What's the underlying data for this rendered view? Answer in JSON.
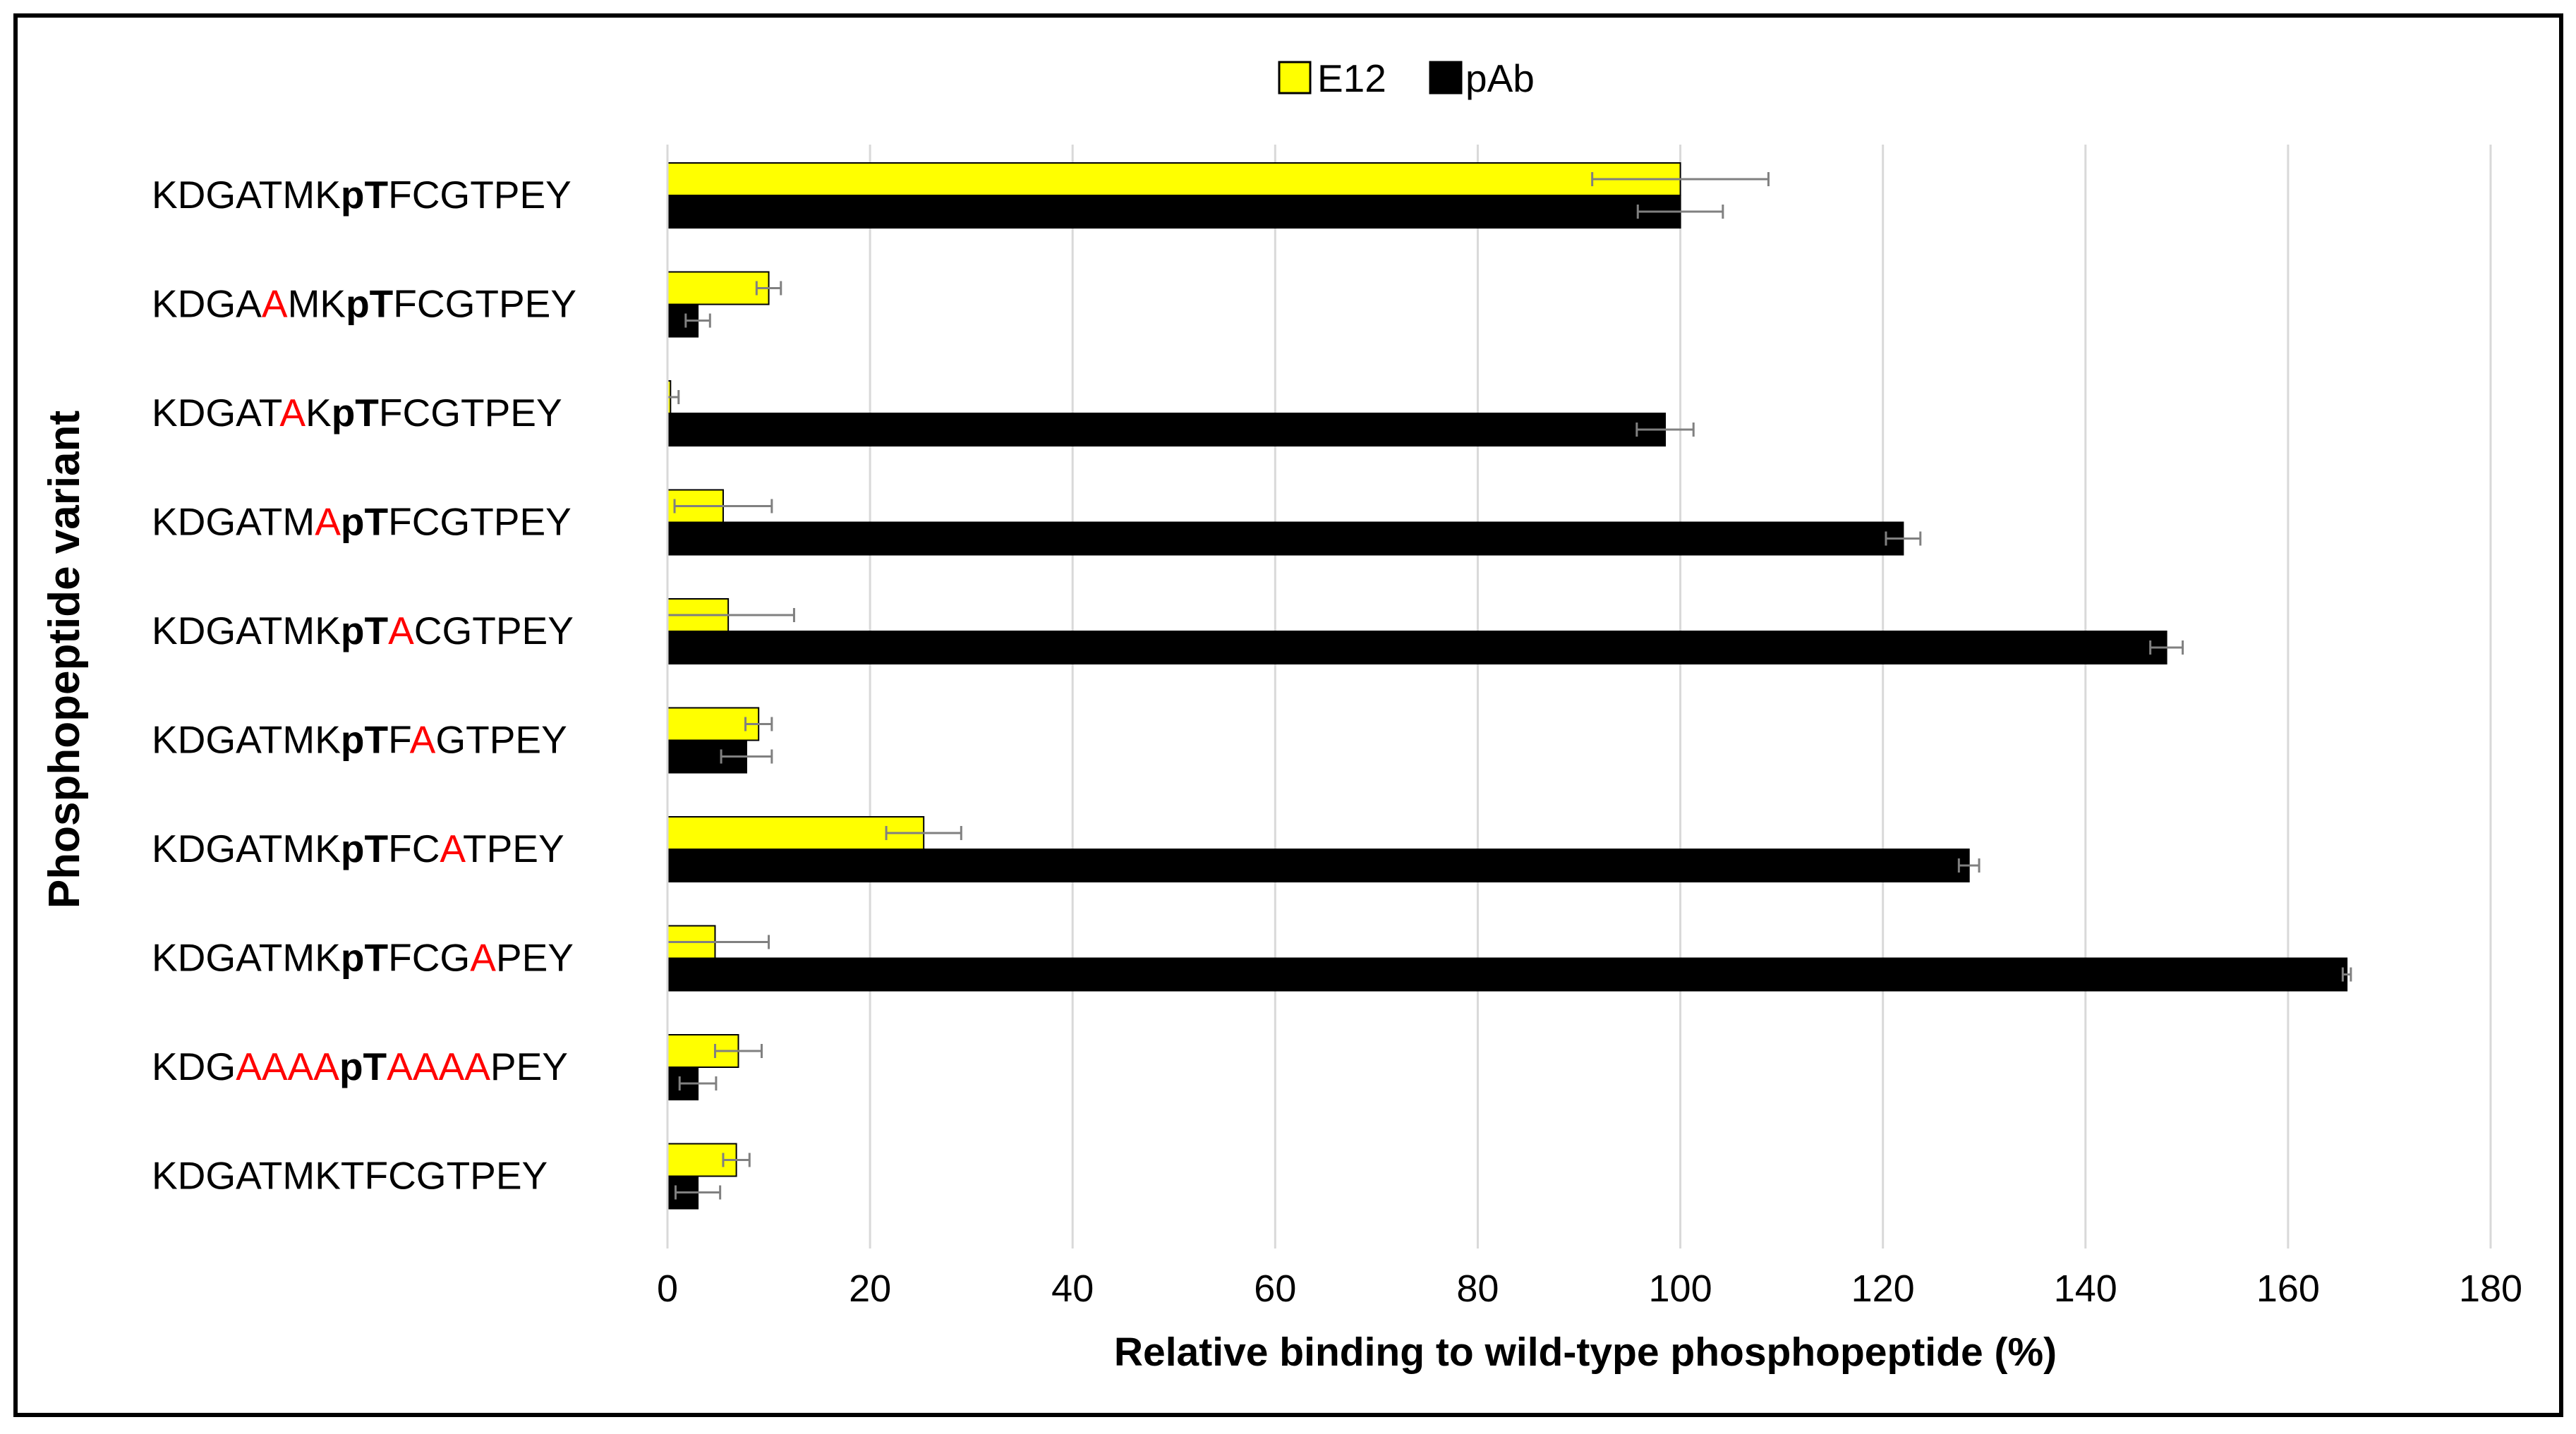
{
  "chart_data": {
    "type": "bar",
    "orientation": "horizontal",
    "xlabel": "Relative binding to wild-type phosphopeptide (%)",
    "ylabel": "Phosphopeptide variant",
    "xlim": [
      0,
      180
    ],
    "xticks": [
      0,
      20,
      40,
      60,
      80,
      100,
      120,
      140,
      160,
      180
    ],
    "grid": "vertical",
    "legend": "top-center",
    "categories": [
      "KDGATMKpTFCGTPEY",
      "KDGAAMKpTFCGTPEY",
      "KDGATAKpTFCGTPEY",
      "KDGATMApTFCGTPEY",
      "KDGATMKpTACGTPEY",
      "KDGATMKpTFAGTPEY",
      "KDGATMKpTFCATPEY",
      "KDGATMKpTFCGAPEY",
      "KDGAAAApTAAAAPEY",
      "KDGATMKTFCGTPEY"
    ],
    "category_segments": [
      [
        {
          "t": "KDGATMK",
          "s": "n"
        },
        {
          "t": "pT",
          "s": "b"
        },
        {
          "t": "FCGTPEY",
          "s": "n"
        }
      ],
      [
        {
          "t": "KDGA",
          "s": "n"
        },
        {
          "t": "A",
          "s": "r"
        },
        {
          "t": "MK",
          "s": "n"
        },
        {
          "t": "pT",
          "s": "b"
        },
        {
          "t": "FCGTPEY",
          "s": "n"
        }
      ],
      [
        {
          "t": "KDGAT",
          "s": "n"
        },
        {
          "t": "A",
          "s": "r"
        },
        {
          "t": "K",
          "s": "n"
        },
        {
          "t": "pT",
          "s": "b"
        },
        {
          "t": "FCGTPEY",
          "s": "n"
        }
      ],
      [
        {
          "t": "KDGATM",
          "s": "n"
        },
        {
          "t": "A",
          "s": "r"
        },
        {
          "t": "pT",
          "s": "b"
        },
        {
          "t": "FCGTPEY",
          "s": "n"
        }
      ],
      [
        {
          "t": "KDGATMK",
          "s": "n"
        },
        {
          "t": "pT",
          "s": "b"
        },
        {
          "t": "A",
          "s": "r"
        },
        {
          "t": "CGTPEY",
          "s": "n"
        }
      ],
      [
        {
          "t": "KDGATMK",
          "s": "n"
        },
        {
          "t": "pT",
          "s": "b"
        },
        {
          "t": "F",
          "s": "n"
        },
        {
          "t": "A",
          "s": "r"
        },
        {
          "t": "GTPEY",
          "s": "n"
        }
      ],
      [
        {
          "t": "KDGATMK",
          "s": "n"
        },
        {
          "t": "pT",
          "s": "b"
        },
        {
          "t": "FC",
          "s": "n"
        },
        {
          "t": "A",
          "s": "r"
        },
        {
          "t": "TPEY",
          "s": "n"
        }
      ],
      [
        {
          "t": "KDGATMK",
          "s": "n"
        },
        {
          "t": "pT",
          "s": "b"
        },
        {
          "t": "FCG",
          "s": "n"
        },
        {
          "t": "A",
          "s": "r"
        },
        {
          "t": "PEY",
          "s": "n"
        }
      ],
      [
        {
          "t": "KDG",
          "s": "n"
        },
        {
          "t": "AAAA",
          "s": "r"
        },
        {
          "t": "pT",
          "s": "b"
        },
        {
          "t": "AAAA",
          "s": "r"
        },
        {
          "t": "PEY",
          "s": "n"
        }
      ],
      [
        {
          "t": "KDGATMKTFCGTPEY",
          "s": "n"
        }
      ]
    ],
    "series": [
      {
        "name": "E12",
        "color": "#ffff00",
        "values": [
          100,
          10,
          0.3,
          5.5,
          6,
          9,
          25.3,
          4.7,
          7,
          6.8
        ],
        "errors": [
          8.7,
          1.2,
          0.8,
          4.8,
          6.5,
          1.3,
          3.7,
          5.3,
          2.3,
          1.3
        ]
      },
      {
        "name": "pAb",
        "color": "#000000",
        "values": [
          100,
          3,
          98.5,
          122,
          148,
          7.8,
          128.5,
          165.8,
          3,
          3
        ],
        "errors": [
          4.2,
          1.2,
          2.8,
          1.7,
          1.6,
          2.5,
          1,
          0.4,
          1.8,
          2.2
        ]
      }
    ]
  }
}
